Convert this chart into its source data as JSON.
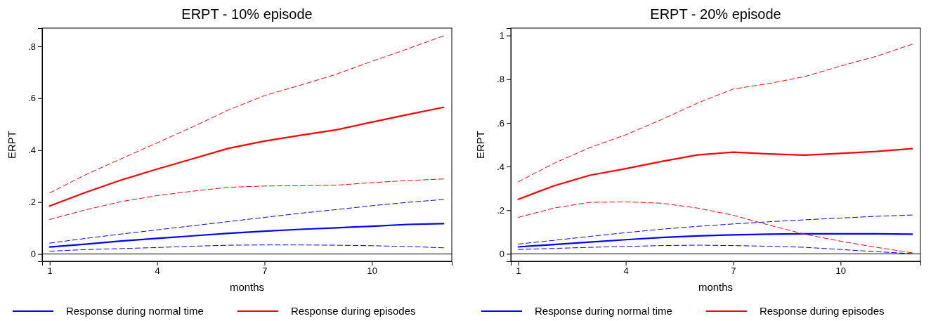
{
  "chart_data": [
    {
      "type": "line",
      "title": "ERPT - 10% episode",
      "xlabel": "months",
      "ylabel": "ERPT",
      "x": [
        1,
        2,
        3,
        4,
        5,
        6,
        7,
        8,
        9,
        10,
        11,
        12
      ],
      "xlim": [
        0.79,
        12.23
      ],
      "xticks": [
        1,
        4,
        7,
        10
      ],
      "ylim": [
        -0.028,
        0.87
      ],
      "yticks": [
        {
          "value": 0,
          "label": "0"
        },
        {
          "value": 0.2,
          "label": ".2"
        },
        {
          "value": 0.4,
          "label": ".4"
        },
        {
          "value": 0.6,
          "label": ".6"
        },
        {
          "value": 0.8,
          "label": ".8"
        }
      ],
      "grid": false,
      "legend": "bottom",
      "marker": "none",
      "ref_lines": [
        {
          "axis": "y",
          "value": 0,
          "color": "#000000"
        }
      ],
      "series": [
        {
          "name": "Response during normal time",
          "color": "#0000ff",
          "line_style": "solid",
          "values": [
            0.027,
            0.038,
            0.05,
            0.06,
            0.07,
            0.08,
            0.088,
            0.095,
            0.101,
            0.107,
            0.114,
            0.117
          ]
        },
        {
          "color": "#0000ff",
          "line_style": "dashed",
          "values": [
            0.042,
            0.06,
            0.077,
            0.093,
            0.109,
            0.125,
            0.141,
            0.157,
            0.171,
            0.186,
            0.199,
            0.21
          ]
        },
        {
          "color": "#0000ff",
          "line_style": "dashed",
          "values": [
            0.011,
            0.017,
            0.021,
            0.025,
            0.03,
            0.034,
            0.035,
            0.035,
            0.034,
            0.032,
            0.029,
            0.024
          ]
        },
        {
          "name": "Response during episodes",
          "color": "#ff0000",
          "line_style": "solid",
          "values": [
            0.185,
            0.237,
            0.285,
            0.327,
            0.367,
            0.407,
            0.435,
            0.457,
            0.478,
            0.508,
            0.537,
            0.565
          ]
        },
        {
          "color": "#ff0000",
          "line_style": "dashed",
          "values": [
            0.235,
            0.305,
            0.367,
            0.428,
            0.49,
            0.555,
            0.61,
            0.65,
            0.692,
            0.742,
            0.79,
            0.84
          ]
        },
        {
          "color": "#ff0000",
          "line_style": "dashed",
          "values": [
            0.133,
            0.17,
            0.202,
            0.225,
            0.242,
            0.257,
            0.262,
            0.263,
            0.265,
            0.275,
            0.283,
            0.289
          ]
        }
      ]
    },
    {
      "type": "line",
      "title": "ERPT - 20% episode",
      "xlabel": "months",
      "ylabel": "ERPT",
      "x": [
        1,
        2,
        3,
        4,
        5,
        6,
        7,
        8,
        9,
        10,
        11,
        12
      ],
      "xlim": [
        0.79,
        12.23
      ],
      "xticks": [
        1,
        4,
        7,
        10
      ],
      "ylim": [
        -0.034,
        1.034
      ],
      "yticks": [
        {
          "value": 0,
          "label": "0"
        },
        {
          "value": 0.2,
          "label": ".2"
        },
        {
          "value": 0.4,
          "label": ".4"
        },
        {
          "value": 0.6,
          "label": ".6"
        },
        {
          "value": 0.8,
          "label": ".8"
        },
        1
      ],
      "grid": false,
      "legend": "bottom",
      "marker": "none",
      "ref_lines": [
        {
          "axis": "y",
          "value": 0,
          "color": "#000000"
        }
      ],
      "series": [
        {
          "name": "Response during normal time",
          "color": "#0000ff",
          "line_style": "solid",
          "values": [
            0.032,
            0.043,
            0.054,
            0.065,
            0.075,
            0.082,
            0.087,
            0.09,
            0.092,
            0.092,
            0.092,
            0.09
          ]
        },
        {
          "color": "#0000ff",
          "line_style": "dashed",
          "values": [
            0.045,
            0.062,
            0.08,
            0.097,
            0.113,
            0.126,
            0.137,
            0.147,
            0.156,
            0.164,
            0.172,
            0.178
          ]
        },
        {
          "color": "#0000ff",
          "line_style": "dashed",
          "values": [
            0.02,
            0.025,
            0.03,
            0.034,
            0.038,
            0.04,
            0.038,
            0.035,
            0.03,
            0.02,
            0.01,
            0.001
          ]
        },
        {
          "name": "Response during episodes",
          "color": "#ff0000",
          "line_style": "solid",
          "values": [
            0.25,
            0.312,
            0.36,
            0.39,
            0.423,
            0.453,
            0.466,
            0.458,
            0.452,
            0.46,
            0.469,
            0.482
          ]
        },
        {
          "color": "#ff0000",
          "line_style": "dashed",
          "values": [
            0.33,
            0.415,
            0.487,
            0.545,
            0.615,
            0.69,
            0.755,
            0.78,
            0.812,
            0.86,
            0.905,
            0.96
          ]
        },
        {
          "color": "#ff0000",
          "line_style": "dashed",
          "values": [
            0.167,
            0.21,
            0.236,
            0.238,
            0.232,
            0.21,
            0.177,
            0.132,
            0.09,
            0.058,
            0.03,
            0.005
          ]
        }
      ]
    }
  ]
}
